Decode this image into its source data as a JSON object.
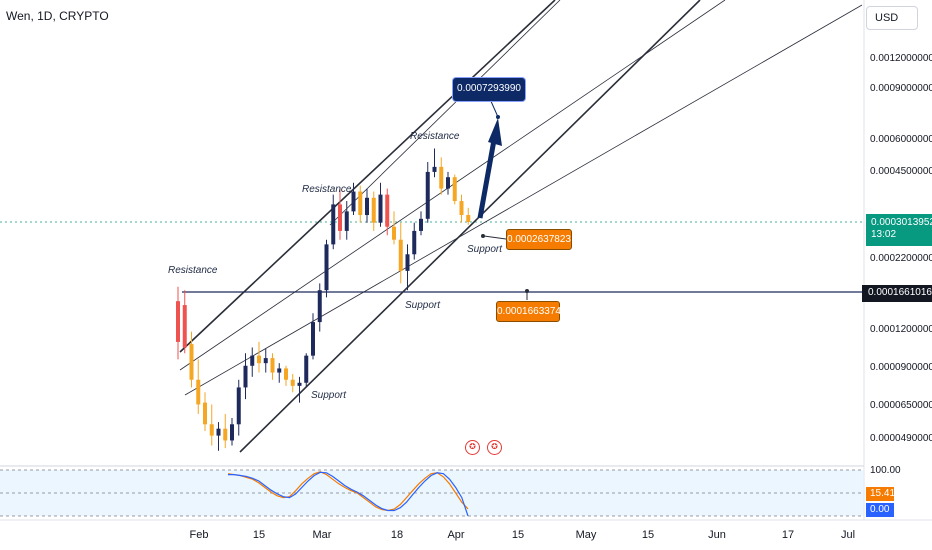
{
  "symbol": {
    "title": "Wen, 1D, CRYPTO"
  },
  "currency": {
    "label": "USD"
  },
  "price_axis": {
    "ticks": [
      "0.0012000000",
      "0.0009000000",
      "0.0006000000",
      "0.0004500000",
      "0.0002200000",
      "0.0001200000",
      "0.0000900000",
      "0.0000650000",
      "0.0000490000"
    ]
  },
  "time_axis": {
    "ticks": [
      "Feb",
      "15",
      "Mar",
      "18",
      "Apr",
      "15",
      "May",
      "15",
      "Jun",
      "17",
      "Jul"
    ]
  },
  "current_price": {
    "value": "0.0003013952",
    "countdown": "13:02",
    "color": "#089981"
  },
  "level": {
    "value": "0.0001661016",
    "color": "#131722"
  },
  "annotations": {
    "target": "0.0007293990",
    "support_upper": "0.0002637823",
    "support_lower": "0.0001663374",
    "resistance_notes": [
      "Resistance",
      "Resistance",
      "Resistance"
    ],
    "support_notes": [
      "Support",
      "Support",
      "Support"
    ]
  },
  "rsi": {
    "top_tick": "100.00",
    "k_value": "15.41",
    "d_value": "0.00",
    "k_color": "#f57c00",
    "d_color": "#2962ff"
  },
  "events": {
    "icon": "us-flag-icon",
    "count": 2
  },
  "chart_data": {
    "type": "candlestick",
    "y_scale": "log",
    "x_axis_ticks": [
      "Feb",
      "15",
      "Mar",
      "18",
      "Apr",
      "15",
      "May",
      "15",
      "Jun",
      "17",
      "Jul"
    ],
    "y_axis_ticks": [
      0.0012,
      0.0009,
      0.0006,
      0.00045,
      0.00022,
      0.00012,
      9e-05,
      6.5e-05,
      4.9e-05
    ],
    "candles": [
      {
        "o": 0.00011,
        "h": 0.000175,
        "l": 9.5e-05,
        "c": 0.000155,
        "color": "red"
      },
      {
        "o": 0.00015,
        "h": 0.00017,
        "l": 0.0001,
        "c": 0.000105,
        "color": "red"
      },
      {
        "o": 0.000108,
        "h": 0.00012,
        "l": 7.5e-05,
        "c": 8e-05,
        "color": "orange"
      },
      {
        "o": 8e-05,
        "h": 9.5e-05,
        "l": 6e-05,
        "c": 6.5e-05,
        "color": "orange"
      },
      {
        "o": 6.6e-05,
        "h": 7.2e-05,
        "l": 5.2e-05,
        "c": 5.5e-05,
        "color": "orange"
      },
      {
        "o": 5.5e-05,
        "h": 6.5e-05,
        "l": 4.6e-05,
        "c": 5e-05,
        "color": "orange"
      },
      {
        "o": 5e-05,
        "h": 5.6e-05,
        "l": 4.4e-05,
        "c": 5.3e-05,
        "color": "navy"
      },
      {
        "o": 5.3e-05,
        "h": 6e-05,
        "l": 4.5e-05,
        "c": 4.8e-05,
        "color": "orange"
      },
      {
        "o": 4.8e-05,
        "h": 5.8e-05,
        "l": 4.6e-05,
        "c": 5.5e-05,
        "color": "navy"
      },
      {
        "o": 5.5e-05,
        "h": 8e-05,
        "l": 5e-05,
        "c": 7.5e-05,
        "color": "navy"
      },
      {
        "o": 7.5e-05,
        "h": 0.0001,
        "l": 6.8e-05,
        "c": 9e-05,
        "color": "navy"
      },
      {
        "o": 9e-05,
        "h": 0.000105,
        "l": 8.2e-05,
        "c": 9.8e-05,
        "color": "navy"
      },
      {
        "o": 9.8e-05,
        "h": 0.00011,
        "l": 8.5e-05,
        "c": 9.2e-05,
        "color": "orange"
      },
      {
        "o": 9.2e-05,
        "h": 0.000104,
        "l": 8.5e-05,
        "c": 9.6e-05,
        "color": "navy"
      },
      {
        "o": 9.6e-05,
        "h": 0.0001,
        "l": 8e-05,
        "c": 8.5e-05,
        "color": "orange"
      },
      {
        "o": 8.5e-05,
        "h": 9.2e-05,
        "l": 7.8e-05,
        "c": 8.8e-05,
        "color": "navy"
      },
      {
        "o": 8.8e-05,
        "h": 9e-05,
        "l": 7.6e-05,
        "c": 8e-05,
        "color": "orange"
      },
      {
        "o": 8e-05,
        "h": 8.4e-05,
        "l": 7.2e-05,
        "c": 7.6e-05,
        "color": "orange"
      },
      {
        "o": 7.6e-05,
        "h": 8.2e-05,
        "l": 6.6e-05,
        "c": 7.8e-05,
        "color": "navy"
      },
      {
        "o": 7.8e-05,
        "h": 0.0001,
        "l": 7.5e-05,
        "c": 9.8e-05,
        "color": "navy"
      },
      {
        "o": 9.8e-05,
        "h": 0.00014,
        "l": 9.5e-05,
        "c": 0.00013,
        "color": "navy"
      },
      {
        "o": 0.00013,
        "h": 0.00018,
        "l": 0.00012,
        "c": 0.00017,
        "color": "navy"
      },
      {
        "o": 0.00017,
        "h": 0.00026,
        "l": 0.00016,
        "c": 0.00025,
        "color": "navy"
      },
      {
        "o": 0.00025,
        "h": 0.00038,
        "l": 0.00024,
        "c": 0.00035,
        "color": "navy"
      },
      {
        "o": 0.00035,
        "h": 0.0004,
        "l": 0.00026,
        "c": 0.00028,
        "color": "red"
      },
      {
        "o": 0.00028,
        "h": 0.00036,
        "l": 0.00026,
        "c": 0.00033,
        "color": "navy"
      },
      {
        "o": 0.00033,
        "h": 0.00042,
        "l": 0.00032,
        "c": 0.00039,
        "color": "navy"
      },
      {
        "o": 0.00039,
        "h": 0.00041,
        "l": 0.0003,
        "c": 0.00032,
        "color": "orange"
      },
      {
        "o": 0.00032,
        "h": 0.0004,
        "l": 0.0003,
        "c": 0.00037,
        "color": "navy"
      },
      {
        "o": 0.00037,
        "h": 0.00039,
        "l": 0.00028,
        "c": 0.0003,
        "color": "orange"
      },
      {
        "o": 0.0003,
        "h": 0.00042,
        "l": 0.00029,
        "c": 0.00038,
        "color": "navy"
      },
      {
        "o": 0.00038,
        "h": 0.0004,
        "l": 0.00027,
        "c": 0.00029,
        "color": "red"
      },
      {
        "o": 0.00029,
        "h": 0.00033,
        "l": 0.00025,
        "c": 0.00026,
        "color": "orange"
      },
      {
        "o": 0.00026,
        "h": 0.0003,
        "l": 0.00018,
        "c": 0.0002,
        "color": "orange"
      },
      {
        "o": 0.0002,
        "h": 0.00025,
        "l": 0.00017,
        "c": 0.00023,
        "color": "navy"
      },
      {
        "o": 0.00023,
        "h": 0.0003,
        "l": 0.00022,
        "c": 0.00028,
        "color": "navy"
      },
      {
        "o": 0.00028,
        "h": 0.00033,
        "l": 0.00027,
        "c": 0.00031,
        "color": "navy"
      },
      {
        "o": 0.00031,
        "h": 0.0005,
        "l": 0.0003,
        "c": 0.00046,
        "color": "navy"
      },
      {
        "o": 0.00046,
        "h": 0.00056,
        "l": 0.00044,
        "c": 0.00048,
        "color": "navy"
      },
      {
        "o": 0.00048,
        "h": 0.00052,
        "l": 0.00038,
        "c": 0.0004,
        "color": "orange"
      },
      {
        "o": 0.0004,
        "h": 0.00046,
        "l": 0.00038,
        "c": 0.00044,
        "color": "navy"
      },
      {
        "o": 0.00044,
        "h": 0.00045,
        "l": 0.00035,
        "c": 0.00036,
        "color": "orange"
      },
      {
        "o": 0.00036,
        "h": 0.00038,
        "l": 0.0003,
        "c": 0.00032,
        "color": "orange"
      },
      {
        "o": 0.00032,
        "h": 0.00034,
        "l": 0.000295,
        "c": 0.000302,
        "color": "orange"
      }
    ],
    "rsi_k": [
      92,
      90,
      88,
      84,
      80,
      72,
      62,
      52,
      44,
      40,
      42,
      55,
      70,
      82,
      92,
      96,
      90,
      80,
      70,
      62,
      55,
      50,
      40,
      30,
      20,
      14,
      12,
      15,
      25,
      40,
      55,
      70,
      82,
      92,
      94,
      85,
      70,
      50,
      30,
      15.41
    ],
    "rsi_d": [
      90,
      90,
      88,
      86,
      82,
      76,
      66,
      56,
      48,
      42,
      40,
      48,
      62,
      76,
      88,
      95,
      94,
      86,
      76,
      66,
      58,
      52,
      44,
      34,
      24,
      16,
      12,
      12,
      18,
      30,
      46,
      62,
      76,
      88,
      94,
      92,
      80,
      62,
      40,
      0
    ]
  }
}
